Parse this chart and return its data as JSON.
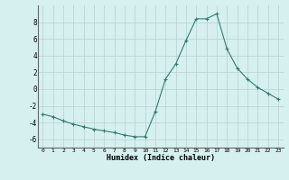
{
  "x": [
    0,
    1,
    2,
    3,
    4,
    5,
    6,
    7,
    8,
    9,
    10,
    11,
    12,
    13,
    14,
    15,
    16,
    17,
    18,
    19,
    20,
    21,
    22,
    23
  ],
  "y": [
    -3.0,
    -3.3,
    -3.8,
    -4.2,
    -4.5,
    -4.8,
    -5.0,
    -5.2,
    -5.5,
    -5.7,
    -5.7,
    -2.7,
    1.2,
    3.0,
    5.8,
    8.4,
    8.4,
    9.0,
    4.8,
    2.5,
    1.2,
    0.2,
    -0.5,
    -1.2
  ],
  "xlim": [
    -0.5,
    23.5
  ],
  "ylim": [
    -7,
    10
  ],
  "yticks": [
    -6,
    -4,
    -2,
    0,
    2,
    4,
    6,
    8
  ],
  "xticks": [
    0,
    1,
    2,
    3,
    4,
    5,
    6,
    7,
    8,
    9,
    10,
    11,
    12,
    13,
    14,
    15,
    16,
    17,
    18,
    19,
    20,
    21,
    22,
    23
  ],
  "xlabel": "Humidex (Indice chaleur)",
  "line_color": "#2e7d6e",
  "marker": "+",
  "bg_color": "#d6f0ef",
  "grid_color": "#b8d0ce",
  "title": ""
}
